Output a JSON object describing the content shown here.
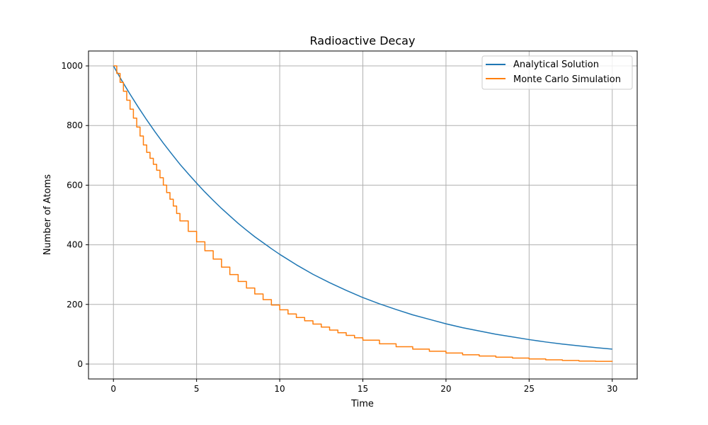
{
  "chart_data": {
    "type": "line",
    "title": "Radioactive Decay",
    "xlabel": "Time",
    "ylabel": "Number of Atoms",
    "xlim": [
      -1.5,
      31.5
    ],
    "ylim": [
      -50,
      1050
    ],
    "xticks": [
      0,
      5,
      10,
      15,
      20,
      25,
      30
    ],
    "yticks": [
      0,
      200,
      400,
      600,
      800,
      1000
    ],
    "grid": true,
    "legend_position": "top-right",
    "series": [
      {
        "name": "Analytical Solution",
        "color": "#1f77b4",
        "style": "smooth",
        "x": [
          0,
          0.5,
          1,
          1.5,
          2,
          2.5,
          3,
          3.5,
          4,
          4.5,
          5,
          5.5,
          6,
          6.5,
          7,
          7.5,
          8,
          8.5,
          9,
          9.5,
          10,
          11,
          12,
          13,
          14,
          15,
          16,
          17,
          18,
          19,
          20,
          21,
          22,
          23,
          24,
          25,
          26,
          27,
          28,
          29,
          30
        ],
        "y": [
          1000,
          951,
          905,
          861,
          819,
          779,
          741,
          705,
          670,
          638,
          607,
          577,
          549,
          522,
          497,
          472,
          449,
          427,
          407,
          387,
          368,
          333,
          301,
          273,
          247,
          223,
          202,
          183,
          165,
          150,
          135,
          122,
          111,
          100,
          91,
          82,
          74,
          67,
          61,
          55,
          50
        ]
      },
      {
        "name": "Monte Carlo Simulation",
        "color": "#ff7f0e",
        "style": "step",
        "x": [
          0,
          0.2,
          0.4,
          0.6,
          0.8,
          1,
          1.2,
          1.4,
          1.6,
          1.8,
          2,
          2.2,
          2.4,
          2.6,
          2.8,
          3,
          3.2,
          3.4,
          3.6,
          3.8,
          4,
          4.5,
          5,
          5.5,
          6,
          6.5,
          7,
          7.5,
          8,
          8.5,
          9,
          9.5,
          10,
          10.5,
          11,
          11.5,
          12,
          12.5,
          13,
          13.5,
          14,
          14.5,
          15,
          16,
          17,
          18,
          19,
          20,
          21,
          22,
          23,
          24,
          25,
          26,
          27,
          28,
          29,
          30
        ],
        "y": [
          1000,
          975,
          945,
          915,
          885,
          855,
          825,
          795,
          765,
          735,
          710,
          690,
          670,
          650,
          625,
          600,
          575,
          553,
          530,
          505,
          480,
          445,
          410,
          380,
          352,
          325,
          300,
          277,
          255,
          235,
          216,
          198,
          182,
          168,
          156,
          145,
          134,
          124,
          114,
          105,
          96,
          88,
          80,
          68,
          58,
          50,
          43,
          37,
          31,
          27,
          23,
          20,
          17,
          14,
          12,
          10,
          9,
          8
        ]
      }
    ]
  }
}
